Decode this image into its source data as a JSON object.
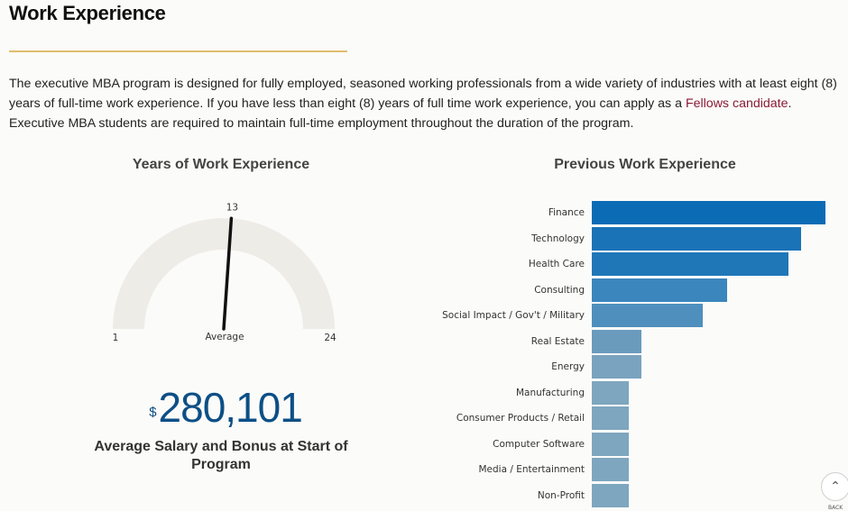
{
  "section": {
    "title": "Work Experience"
  },
  "intro": {
    "before_link": "The executive MBA program is designed for fully employed, seasoned working professionals from a wide variety of industries with at least eight (8) years of full-time work experience. If you have less than eight (8) years of full time work experience, you can apply as a ",
    "link_text": "Fellows candidate",
    "after_link": ". Executive MBA students are required to maintain full-time employment throughout the duration of the program."
  },
  "gauge": {
    "title": "Years of Work Experience",
    "min": 1,
    "max": 24,
    "value": 13,
    "min_label": "1",
    "max_label": "24",
    "value_label": "13",
    "center_label": "Average"
  },
  "salary": {
    "currency": "$",
    "amount": "280,101",
    "label": "Average Salary and Bonus at Start of Program"
  },
  "chart_data": {
    "type": "bar",
    "title": "Previous Work Experience",
    "orientation": "horizontal",
    "categories": [
      "Finance",
      "Technology",
      "Health Care",
      "Consulting",
      "Social Impact / Gov't / Military",
      "Real Estate",
      "Energy",
      "Manufacturing",
      "Consumer Products / Retail",
      "Computer Software",
      "Media / Entertainment",
      "Non-Profit"
    ],
    "values": [
      19,
      17,
      16,
      11,
      9,
      4,
      4,
      3,
      3,
      3,
      3,
      3
    ],
    "xlim": [
      0,
      19
    ],
    "colors": [
      "#0b6bb5",
      "#1a73b7",
      "#1f77b8",
      "#3a86bd",
      "#4f8fbd",
      "#6a9bbd",
      "#7aa3bf",
      "#7ea6bf",
      "#7ea6bf",
      "#7ea6bf",
      "#7ea6bf",
      "#7ea6bf"
    ]
  },
  "back_button": {
    "label": "BACK",
    "icon": "chevron-up-icon"
  }
}
